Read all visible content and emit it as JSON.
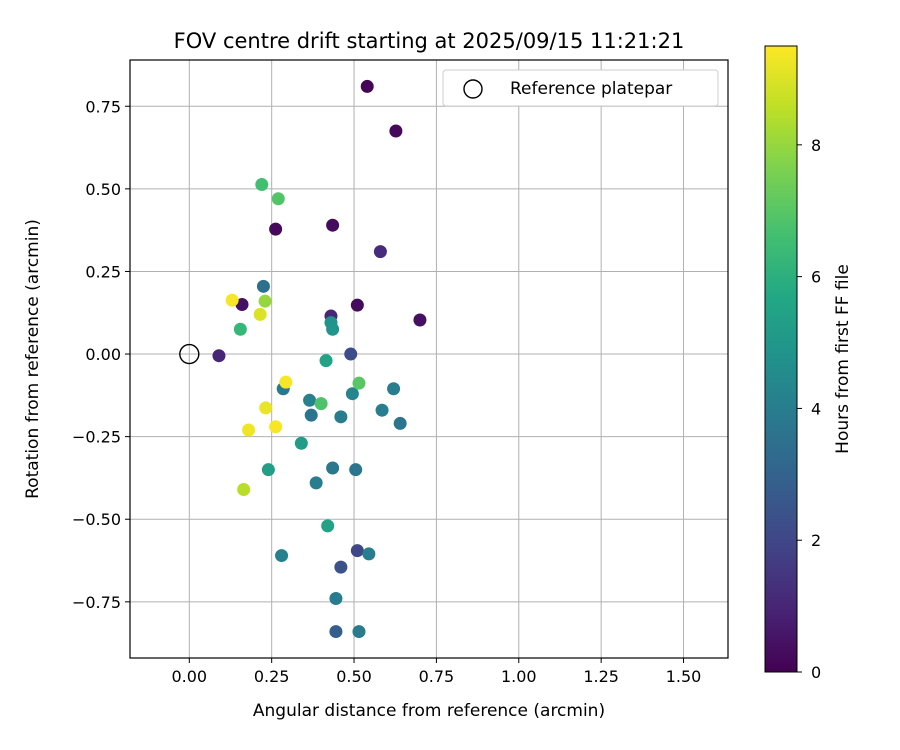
{
  "chart_data": {
    "type": "scatter",
    "title": "FOV centre drift starting at 2025/09/15 11:21:21",
    "xlabel": "Angular distance from reference (arcmin)",
    "ylabel": "Rotation from reference (arcmin)",
    "xlim": [
      -0.18,
      1.635
    ],
    "ylim": [
      -0.92,
      0.89
    ],
    "xticks": [
      0.0,
      0.25,
      0.5,
      0.75,
      1.0,
      1.25,
      1.5
    ],
    "xtick_labels": [
      "0.00",
      "0.25",
      "0.50",
      "0.75",
      "1.00",
      "1.25",
      "1.50"
    ],
    "yticks": [
      -0.75,
      -0.5,
      -0.25,
      0.0,
      0.25,
      0.5,
      0.75
    ],
    "ytick_labels": [
      "−0.75",
      "−0.50",
      "−0.25",
      "0.00",
      "0.25",
      "0.50",
      "0.75"
    ],
    "grid": true,
    "legend": {
      "location": "top-right",
      "label": "Reference platepar"
    },
    "reference_point": {
      "x": 0.0,
      "y": 0.0
    },
    "colorbar": {
      "label": "Hours from first FF file",
      "colormap": "viridis",
      "range": [
        0,
        9.5
      ],
      "ticks": [
        0,
        2,
        4,
        6,
        8
      ],
      "tick_labels": [
        "0",
        "2",
        "4",
        "6",
        "8"
      ]
    },
    "points": [
      {
        "x": 0.54,
        "y": 0.81,
        "c": 0.1
      },
      {
        "x": 0.627,
        "y": 0.675,
        "c": 0.2
      },
      {
        "x": 0.435,
        "y": 0.39,
        "c": 0.3
      },
      {
        "x": 0.262,
        "y": 0.378,
        "c": 0.2
      },
      {
        "x": 0.58,
        "y": 0.31,
        "c": 1.2
      },
      {
        "x": 0.51,
        "y": 0.148,
        "c": 0.3
      },
      {
        "x": 0.7,
        "y": 0.103,
        "c": 0.4
      },
      {
        "x": 0.43,
        "y": 0.115,
        "c": 1.0
      },
      {
        "x": 0.16,
        "y": 0.15,
        "c": 0.4
      },
      {
        "x": 0.09,
        "y": -0.005,
        "c": 1.0
      },
      {
        "x": 0.49,
        "y": 0.0,
        "c": 2.2
      },
      {
        "x": 0.51,
        "y": -0.595,
        "c": 2.0
      },
      {
        "x": 0.46,
        "y": -0.645,
        "c": 2.4
      },
      {
        "x": 0.445,
        "y": -0.84,
        "c": 2.8
      },
      {
        "x": 0.225,
        "y": 0.205,
        "c": 3.5
      },
      {
        "x": 0.285,
        "y": -0.105,
        "c": 3.8
      },
      {
        "x": 0.365,
        "y": -0.14,
        "c": 4.2
      },
      {
        "x": 0.37,
        "y": -0.185,
        "c": 3.6
      },
      {
        "x": 0.46,
        "y": -0.19,
        "c": 3.9
      },
      {
        "x": 0.495,
        "y": -0.12,
        "c": 4.3
      },
      {
        "x": 0.62,
        "y": -0.105,
        "c": 4.0
      },
      {
        "x": 0.585,
        "y": -0.17,
        "c": 4.0
      },
      {
        "x": 0.64,
        "y": -0.21,
        "c": 3.7
      },
      {
        "x": 0.435,
        "y": -0.345,
        "c": 3.8
      },
      {
        "x": 0.505,
        "y": -0.35,
        "c": 3.7
      },
      {
        "x": 0.385,
        "y": -0.39,
        "c": 4.0
      },
      {
        "x": 0.28,
        "y": -0.61,
        "c": 4.1
      },
      {
        "x": 0.545,
        "y": -0.605,
        "c": 4.0
      },
      {
        "x": 0.445,
        "y": -0.74,
        "c": 3.9
      },
      {
        "x": 0.515,
        "y": -0.84,
        "c": 3.9
      },
      {
        "x": 0.43,
        "y": 0.095,
        "c": 4.8
      },
      {
        "x": 0.435,
        "y": 0.075,
        "c": 4.9
      },
      {
        "x": 0.415,
        "y": -0.02,
        "c": 5.5
      },
      {
        "x": 0.34,
        "y": -0.27,
        "c": 5.2
      },
      {
        "x": 0.24,
        "y": -0.35,
        "c": 5.3
      },
      {
        "x": 0.42,
        "y": -0.52,
        "c": 5.5
      },
      {
        "x": 0.155,
        "y": 0.075,
        "c": 6.3
      },
      {
        "x": 0.4,
        "y": -0.15,
        "c": 6.8
      },
      {
        "x": 0.515,
        "y": -0.088,
        "c": 7.0
      },
      {
        "x": 0.22,
        "y": 0.513,
        "c": 6.6
      },
      {
        "x": 0.27,
        "y": 0.47,
        "c": 6.9
      },
      {
        "x": 0.23,
        "y": 0.16,
        "c": 8.0
      },
      {
        "x": 0.165,
        "y": -0.41,
        "c": 8.5
      },
      {
        "x": 0.215,
        "y": 0.12,
        "c": 9.0
      },
      {
        "x": 0.13,
        "y": 0.163,
        "c": 9.4
      },
      {
        "x": 0.232,
        "y": -0.163,
        "c": 9.2
      },
      {
        "x": 0.262,
        "y": -0.22,
        "c": 9.4
      },
      {
        "x": 0.18,
        "y": -0.23,
        "c": 9.3
      },
      {
        "x": 0.293,
        "y": -0.085,
        "c": 9.4
      }
    ]
  }
}
